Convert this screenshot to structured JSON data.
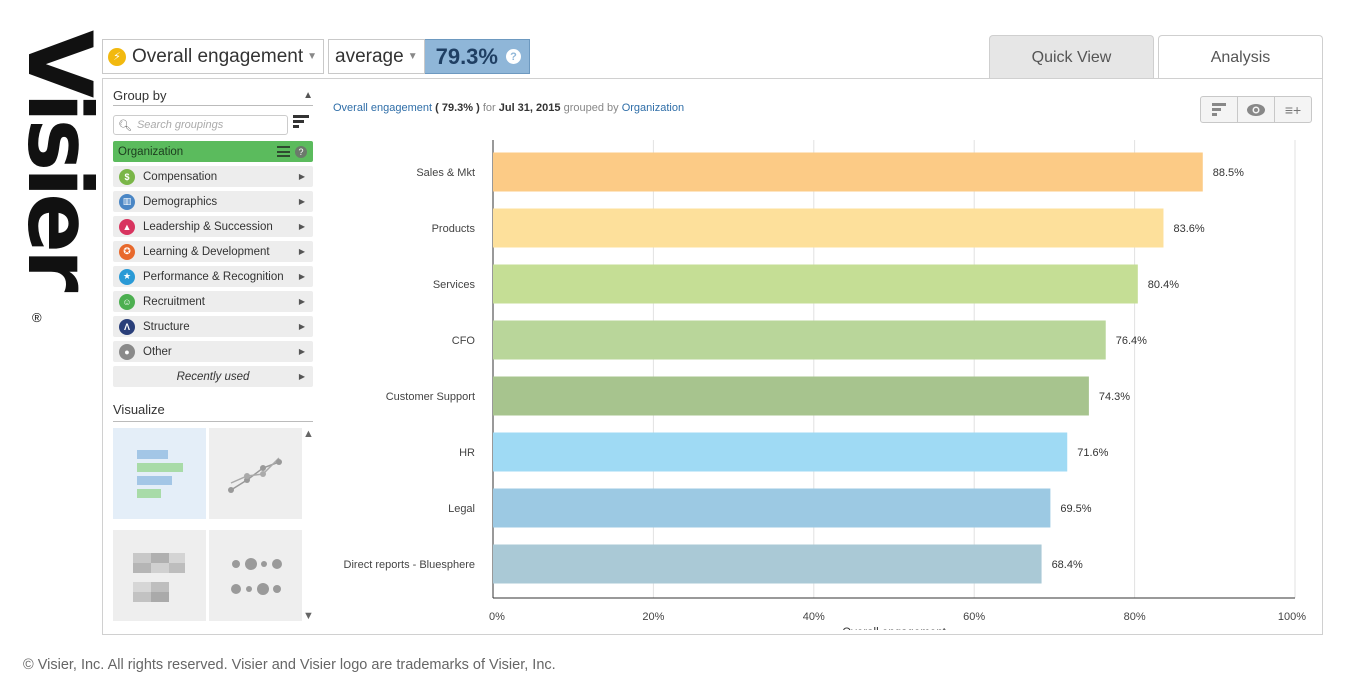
{
  "logo": {
    "text": "Visier",
    "reg": "®"
  },
  "metric": {
    "name": "Overall engagement",
    "aggregate": "average",
    "value": "79.3%",
    "help": "?"
  },
  "tabs": {
    "quick_view": "Quick View",
    "analysis": "Analysis"
  },
  "sidebar": {
    "group_by_label": "Group by",
    "search_placeholder": "Search groupings",
    "active_group": "Organization",
    "groups": [
      {
        "label": "Compensation",
        "icon": "dollar-icon",
        "color": "#7ab648",
        "glyph": "$"
      },
      {
        "label": "Demographics",
        "icon": "demographics-icon",
        "color": "#4a86c5",
        "glyph": "▥"
      },
      {
        "label": "Leadership & Succession",
        "icon": "leadership-icon",
        "color": "#d8345f",
        "glyph": "▲"
      },
      {
        "label": "Learning & Development",
        "icon": "ribbon-icon",
        "color": "#e8692c",
        "glyph": "✪"
      },
      {
        "label": "Performance & Recognition",
        "icon": "star-icon",
        "color": "#2a9ad6",
        "glyph": "★"
      },
      {
        "label": "Recruitment",
        "icon": "recruitment-icon",
        "color": "#4caf50",
        "glyph": "☺"
      },
      {
        "label": "Structure",
        "icon": "structure-icon",
        "color": "#2a3f7a",
        "glyph": "Λ"
      },
      {
        "label": "Other",
        "icon": "other-icon",
        "color": "#8a8a8a",
        "glyph": "●"
      }
    ],
    "recently_used": "Recently used",
    "visualize_label": "Visualize"
  },
  "chart_header": {
    "metric": "Overall engagement",
    "value": "( 79.3% )",
    "for_word": "for",
    "date": "Jul 31, 2015",
    "grouped_by": "grouped by",
    "dimension": "Organization"
  },
  "chart_data": {
    "type": "bar",
    "orientation": "horizontal",
    "categories": [
      "Sales & Mkt",
      "Products",
      "Services",
      "CFO",
      "Customer Support",
      "HR",
      "Legal",
      "Direct reports - Bluesphere"
    ],
    "values": [
      88.5,
      83.6,
      80.4,
      76.4,
      74.3,
      71.6,
      69.5,
      68.4
    ],
    "value_labels": [
      "88.5%",
      "83.6%",
      "80.4%",
      "76.4%",
      "74.3%",
      "71.6%",
      "69.5%",
      "68.4%"
    ],
    "colors": [
      "#fccb86",
      "#fde09b",
      "#c5de95",
      "#b9d69a",
      "#a7c48e",
      "#9fdaf4",
      "#9cc9e3",
      "#aac9d6"
    ],
    "xlabel": "Overall engagement",
    "xticks": [
      "0%",
      "20%",
      "40%",
      "60%",
      "80%",
      "100%"
    ],
    "xlim": [
      0,
      100
    ],
    "grid": true
  },
  "footer": "© Visier, Inc. All rights reserved. Visier and Visier logo are trademarks of Visier, Inc."
}
